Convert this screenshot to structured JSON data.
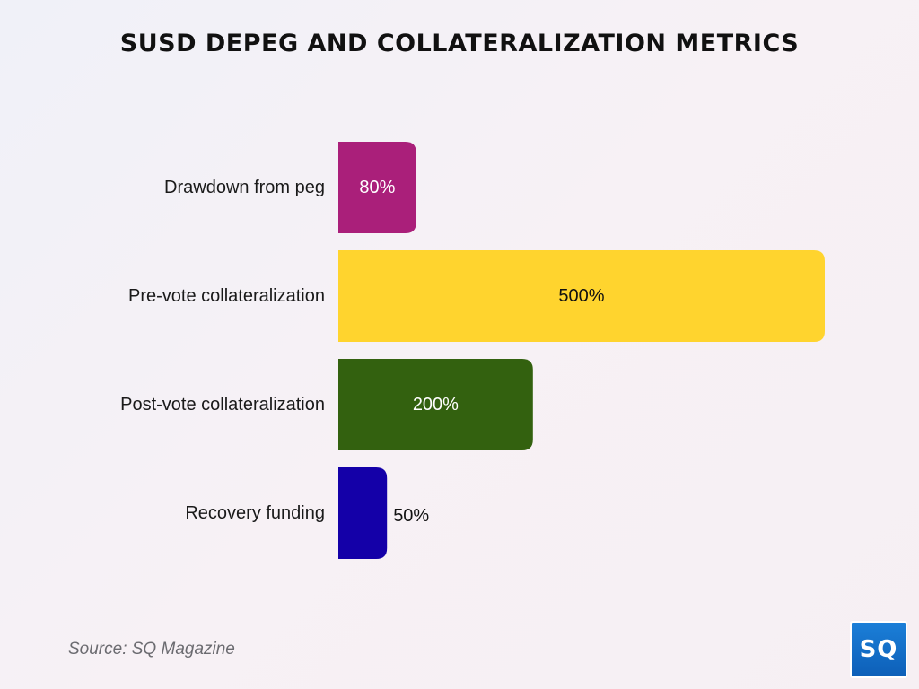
{
  "header": {
    "title": "SUSD DEPEG AND COLLATERALIZATION METRICS"
  },
  "footer": {
    "source": "Source: SQ Magazine",
    "logo_text": "SQ"
  },
  "chart_data": {
    "type": "bar",
    "orientation": "horizontal",
    "title": "SUSD DEPEG AND COLLATERALIZATION METRICS",
    "xlabel": "",
    "ylabel": "",
    "categories": [
      "Drawdown from peg",
      "Pre-vote collateralization",
      "Post-vote collateralization",
      "Recovery funding"
    ],
    "values": [
      80,
      500,
      200,
      50
    ],
    "value_labels": [
      "80%",
      "500%",
      "200%",
      "50%"
    ],
    "colors": [
      "#aa1f7a",
      "#ffd42e",
      "#33610f",
      "#1400a8"
    ],
    "label_colors": [
      "#ffffff",
      "#111111",
      "#ffffff",
      "#111111"
    ],
    "xlim": [
      0,
      500
    ],
    "grid": false,
    "legend": "none"
  }
}
